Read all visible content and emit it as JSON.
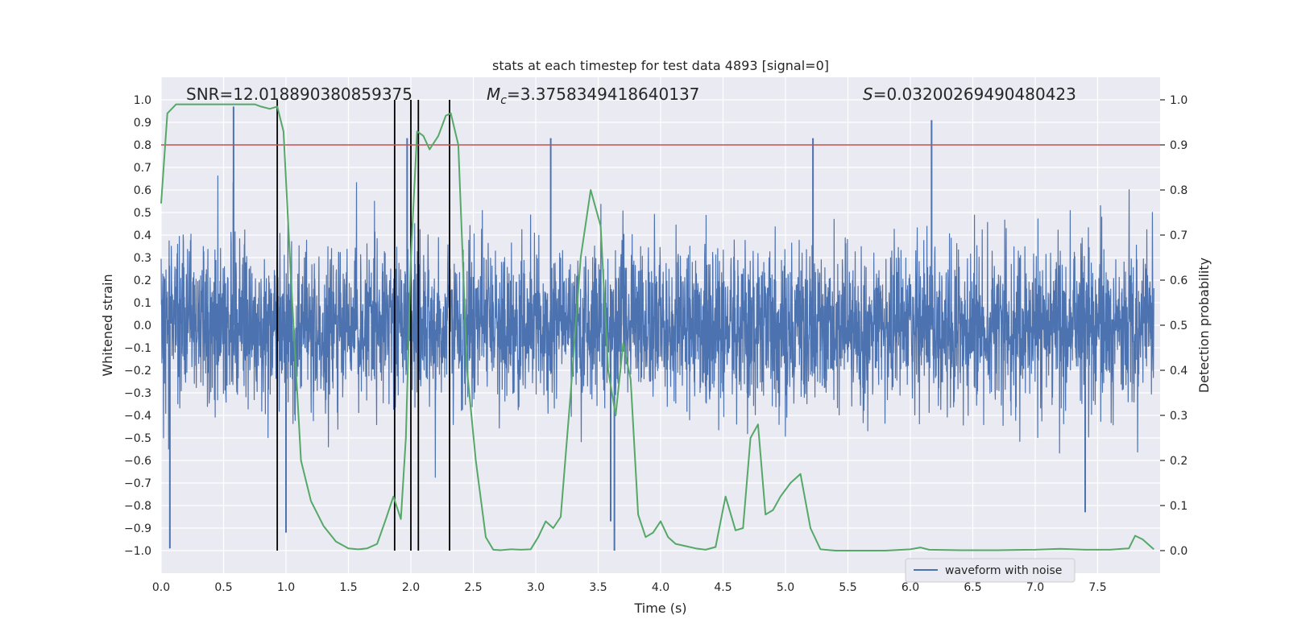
{
  "chart_data": {
    "type": "line",
    "title": "stats at each timestep for test data 4893 [signal=0]",
    "xlabel": "Time (s)",
    "ylabel": "Whitened strain",
    "ylabel_right": "Detection probability",
    "xlim": [
      0.0,
      8.0
    ],
    "ylim": [
      -1.1,
      1.1
    ],
    "ylim_right": [
      -0.05,
      1.05
    ],
    "x_ticks": [
      0.0,
      0.5,
      1.0,
      1.5,
      2.0,
      2.5,
      3.0,
      3.5,
      4.0,
      4.5,
      5.0,
      5.5,
      6.0,
      6.5,
      7.0,
      7.5
    ],
    "x_tick_labels": [
      "0.0",
      "0.5",
      "1.0",
      "1.5",
      "2.0",
      "2.5",
      "3.0",
      "3.5",
      "4.0",
      "4.5",
      "5.0",
      "5.5",
      "6.0",
      "6.5",
      "7.0",
      "7.5"
    ],
    "y_ticks": [
      1.0,
      0.9,
      0.8,
      0.7,
      0.6,
      0.5,
      0.4,
      0.3,
      0.2,
      0.1,
      0.0,
      -0.1,
      -0.2,
      -0.3,
      -0.4,
      -0.5,
      -0.6,
      -0.7,
      -0.8,
      -0.9,
      -1.0
    ],
    "y_tick_labels": [
      "1.0",
      "0.9",
      "0.8",
      "0.7",
      "0.6",
      "0.5",
      "0.4",
      "0.3",
      "0.2",
      "0.1",
      "0.0",
      "−0.1",
      "−0.2",
      "−0.3",
      "−0.4",
      "−0.5",
      "−0.6",
      "−0.7",
      "−0.8",
      "−0.9",
      "−1.0"
    ],
    "y_ticks_right": [
      1.0,
      0.9,
      0.8,
      0.7,
      0.6,
      0.5,
      0.4,
      0.3,
      0.2,
      0.1,
      0.0
    ],
    "y_tick_labels_right": [
      "1.0",
      "0.9",
      "0.8",
      "0.7",
      "0.6",
      "0.5",
      "0.4",
      "0.3",
      "0.2",
      "0.1",
      "0.0"
    ],
    "annotations": {
      "snr": "SNR=12.018890380859375",
      "mc_symbol": "M",
      "mc_subscript": "c",
      "mc_value": "=3.3758349418640137",
      "s_symbol": "S",
      "s_value": "=0.03200269490480423"
    },
    "series": [
      {
        "name": "waveform with noise",
        "axis": "left",
        "color": "#4c72b0",
        "description": "dense whitened strain noise trace",
        "typical_envelope": [
          -0.42,
          0.42
        ],
        "peaks": [
          {
            "x": 0.58,
            "y": 0.97
          },
          {
            "x": 1.97,
            "y": 0.83
          },
          {
            "x": 3.12,
            "y": 0.83
          },
          {
            "x": 5.22,
            "y": 0.83
          },
          {
            "x": 6.17,
            "y": 0.91
          },
          {
            "x": 0.07,
            "y": -0.99
          },
          {
            "x": 3.63,
            "y": -1.0
          },
          {
            "x": 1.0,
            "y": -0.92
          },
          {
            "x": 3.6,
            "y": -0.87
          },
          {
            "x": 7.4,
            "y": -0.83
          }
        ]
      },
      {
        "name": "detection probability",
        "axis": "right",
        "color": "#55a868",
        "x": [
          0.0,
          0.05,
          0.12,
          0.25,
          0.5,
          0.75,
          0.8,
          0.87,
          0.93,
          0.98,
          1.05,
          1.12,
          1.2,
          1.3,
          1.4,
          1.5,
          1.58,
          1.65,
          1.73,
          1.8,
          1.86,
          1.92,
          1.96,
          2.0,
          2.05,
          2.1,
          2.15,
          2.22,
          2.28,
          2.32,
          2.38,
          2.45,
          2.52,
          2.6,
          2.66,
          2.72,
          2.8,
          2.88,
          2.96,
          3.02,
          3.08,
          3.14,
          3.2,
          3.28,
          3.36,
          3.44,
          3.52,
          3.58,
          3.64,
          3.7,
          3.76,
          3.82,
          3.88,
          3.94,
          4.0,
          4.06,
          4.12,
          4.2,
          4.28,
          4.36,
          4.44,
          4.52,
          4.6,
          4.66,
          4.72,
          4.78,
          4.84,
          4.9,
          4.96,
          5.04,
          5.12,
          5.2,
          5.28,
          5.4,
          5.6,
          5.8,
          6.0,
          6.08,
          6.15,
          6.4,
          6.7,
          7.0,
          7.2,
          7.4,
          7.6,
          7.75,
          7.8,
          7.86,
          7.95
        ],
        "values": [
          0.77,
          0.97,
          0.99,
          0.99,
          0.99,
          0.99,
          0.985,
          0.98,
          0.985,
          0.93,
          0.55,
          0.2,
          0.11,
          0.055,
          0.02,
          0.005,
          0.003,
          0.005,
          0.015,
          0.07,
          0.12,
          0.07,
          0.25,
          0.65,
          0.93,
          0.92,
          0.89,
          0.92,
          0.965,
          0.97,
          0.9,
          0.4,
          0.2,
          0.03,
          0.002,
          0.001,
          0.003,
          0.002,
          0.003,
          0.03,
          0.065,
          0.05,
          0.075,
          0.35,
          0.65,
          0.8,
          0.72,
          0.4,
          0.3,
          0.46,
          0.38,
          0.08,
          0.03,
          0.04,
          0.065,
          0.03,
          0.015,
          0.01,
          0.005,
          0.002,
          0.008,
          0.12,
          0.045,
          0.05,
          0.25,
          0.28,
          0.08,
          0.09,
          0.12,
          0.15,
          0.17,
          0.05,
          0.003,
          0.0,
          0.0,
          0.0,
          0.003,
          0.007,
          0.002,
          0.001,
          0.001,
          0.002,
          0.004,
          0.002,
          0.002,
          0.005,
          0.033,
          0.025,
          0.003
        ]
      }
    ],
    "threshold": {
      "axis": "right",
      "value": 0.9,
      "color": "#c44e52"
    },
    "vertical_markers": [
      0.93,
      1.87,
      2.0,
      2.06,
      2.31
    ],
    "legend": {
      "entries": [
        "waveform with noise"
      ],
      "placement": "lower-right"
    }
  }
}
